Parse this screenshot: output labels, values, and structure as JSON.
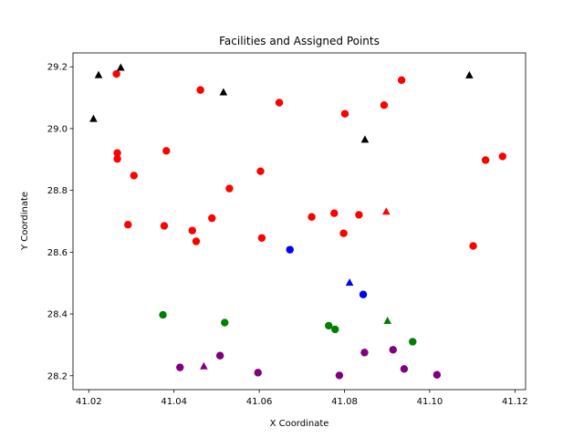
{
  "chart_data": {
    "type": "scatter",
    "title": "Facilities and Assigned Points",
    "xlabel": "X Coordinate",
    "ylabel": "Y Coordinate",
    "xlim": [
      41.0163,
      41.1225
    ],
    "ylim": [
      28.155,
      29.245
    ],
    "xticks": [
      41.02,
      41.04,
      41.06,
      41.08,
      41.1,
      41.12
    ],
    "xtick_labels": [
      "41.02",
      "41.04",
      "41.06",
      "41.08",
      "41.10",
      "41.12"
    ],
    "yticks": [
      28.2,
      28.4,
      28.6,
      28.8,
      29.0,
      29.2
    ],
    "ytick_labels": [
      "28.2",
      "28.4",
      "28.6",
      "28.8",
      "29.0",
      "29.2"
    ],
    "grid": false,
    "series": [
      {
        "color": "#ff0000",
        "marker": "circle",
        "points": [
          {
            "x": 41.0265,
            "y": 29.177
          },
          {
            "x": 41.0462,
            "y": 29.125
          },
          {
            "x": 41.0647,
            "y": 29.084
          },
          {
            "x": 41.0801,
            "y": 29.048
          },
          {
            "x": 41.0893,
            "y": 29.076
          },
          {
            "x": 41.0934,
            "y": 29.157
          },
          {
            "x": 41.0267,
            "y": 28.921
          },
          {
            "x": 41.0267,
            "y": 28.902
          },
          {
            "x": 41.0306,
            "y": 28.848
          },
          {
            "x": 41.0382,
            "y": 28.928
          },
          {
            "x": 41.0603,
            "y": 28.862
          },
          {
            "x": 41.053,
            "y": 28.806
          },
          {
            "x": 41.1131,
            "y": 28.898
          },
          {
            "x": 41.1171,
            "y": 28.91
          },
          {
            "x": 41.0292,
            "y": 28.689
          },
          {
            "x": 41.0377,
            "y": 28.685
          },
          {
            "x": 41.0443,
            "y": 28.67
          },
          {
            "x": 41.0452,
            "y": 28.635
          },
          {
            "x": 41.0489,
            "y": 28.71
          },
          {
            "x": 41.0606,
            "y": 28.646
          },
          {
            "x": 41.0723,
            "y": 28.714
          },
          {
            "x": 41.0776,
            "y": 28.726
          },
          {
            "x": 41.0834,
            "y": 28.721
          },
          {
            "x": 41.0798,
            "y": 28.661
          },
          {
            "x": 41.1102,
            "y": 28.62
          }
        ]
      },
      {
        "color": "#000000",
        "marker": "triangle",
        "points": [
          {
            "x": 41.0223,
            "y": 29.173
          },
          {
            "x": 41.0275,
            "y": 29.197
          },
          {
            "x": 41.0516,
            "y": 29.117
          },
          {
            "x": 41.1093,
            "y": 29.172
          },
          {
            "x": 41.0211,
            "y": 29.031
          },
          {
            "x": 41.0848,
            "y": 28.964
          }
        ]
      },
      {
        "color": "#ff0000",
        "marker": "triangle",
        "points": [
          {
            "x": 41.0898,
            "y": 28.731
          }
        ]
      },
      {
        "color": "#0000ff",
        "marker": "circle",
        "points": [
          {
            "x": 41.0672,
            "y": 28.608
          },
          {
            "x": 41.0844,
            "y": 28.463
          }
        ]
      },
      {
        "color": "#0000ff",
        "marker": "triangle",
        "points": [
          {
            "x": 41.0812,
            "y": 28.501
          }
        ]
      },
      {
        "color": "#008000",
        "marker": "circle",
        "points": [
          {
            "x": 41.0374,
            "y": 28.397
          },
          {
            "x": 41.0519,
            "y": 28.372
          },
          {
            "x": 41.0763,
            "y": 28.362
          },
          {
            "x": 41.0778,
            "y": 28.35
          },
          {
            "x": 41.096,
            "y": 28.31
          }
        ]
      },
      {
        "color": "#008000",
        "marker": "triangle",
        "points": [
          {
            "x": 41.0901,
            "y": 28.377
          }
        ]
      },
      {
        "color": "#800080",
        "marker": "circle",
        "points": [
          {
            "x": 41.0414,
            "y": 28.227
          },
          {
            "x": 41.0508,
            "y": 28.265
          },
          {
            "x": 41.0597,
            "y": 28.21
          },
          {
            "x": 41.0788,
            "y": 28.201
          },
          {
            "x": 41.0847,
            "y": 28.275
          },
          {
            "x": 41.0914,
            "y": 28.284
          },
          {
            "x": 41.094,
            "y": 28.222
          },
          {
            "x": 41.1017,
            "y": 28.203
          }
        ]
      },
      {
        "color": "#800080",
        "marker": "triangle",
        "points": [
          {
            "x": 41.047,
            "y": 28.23
          }
        ]
      }
    ]
  }
}
